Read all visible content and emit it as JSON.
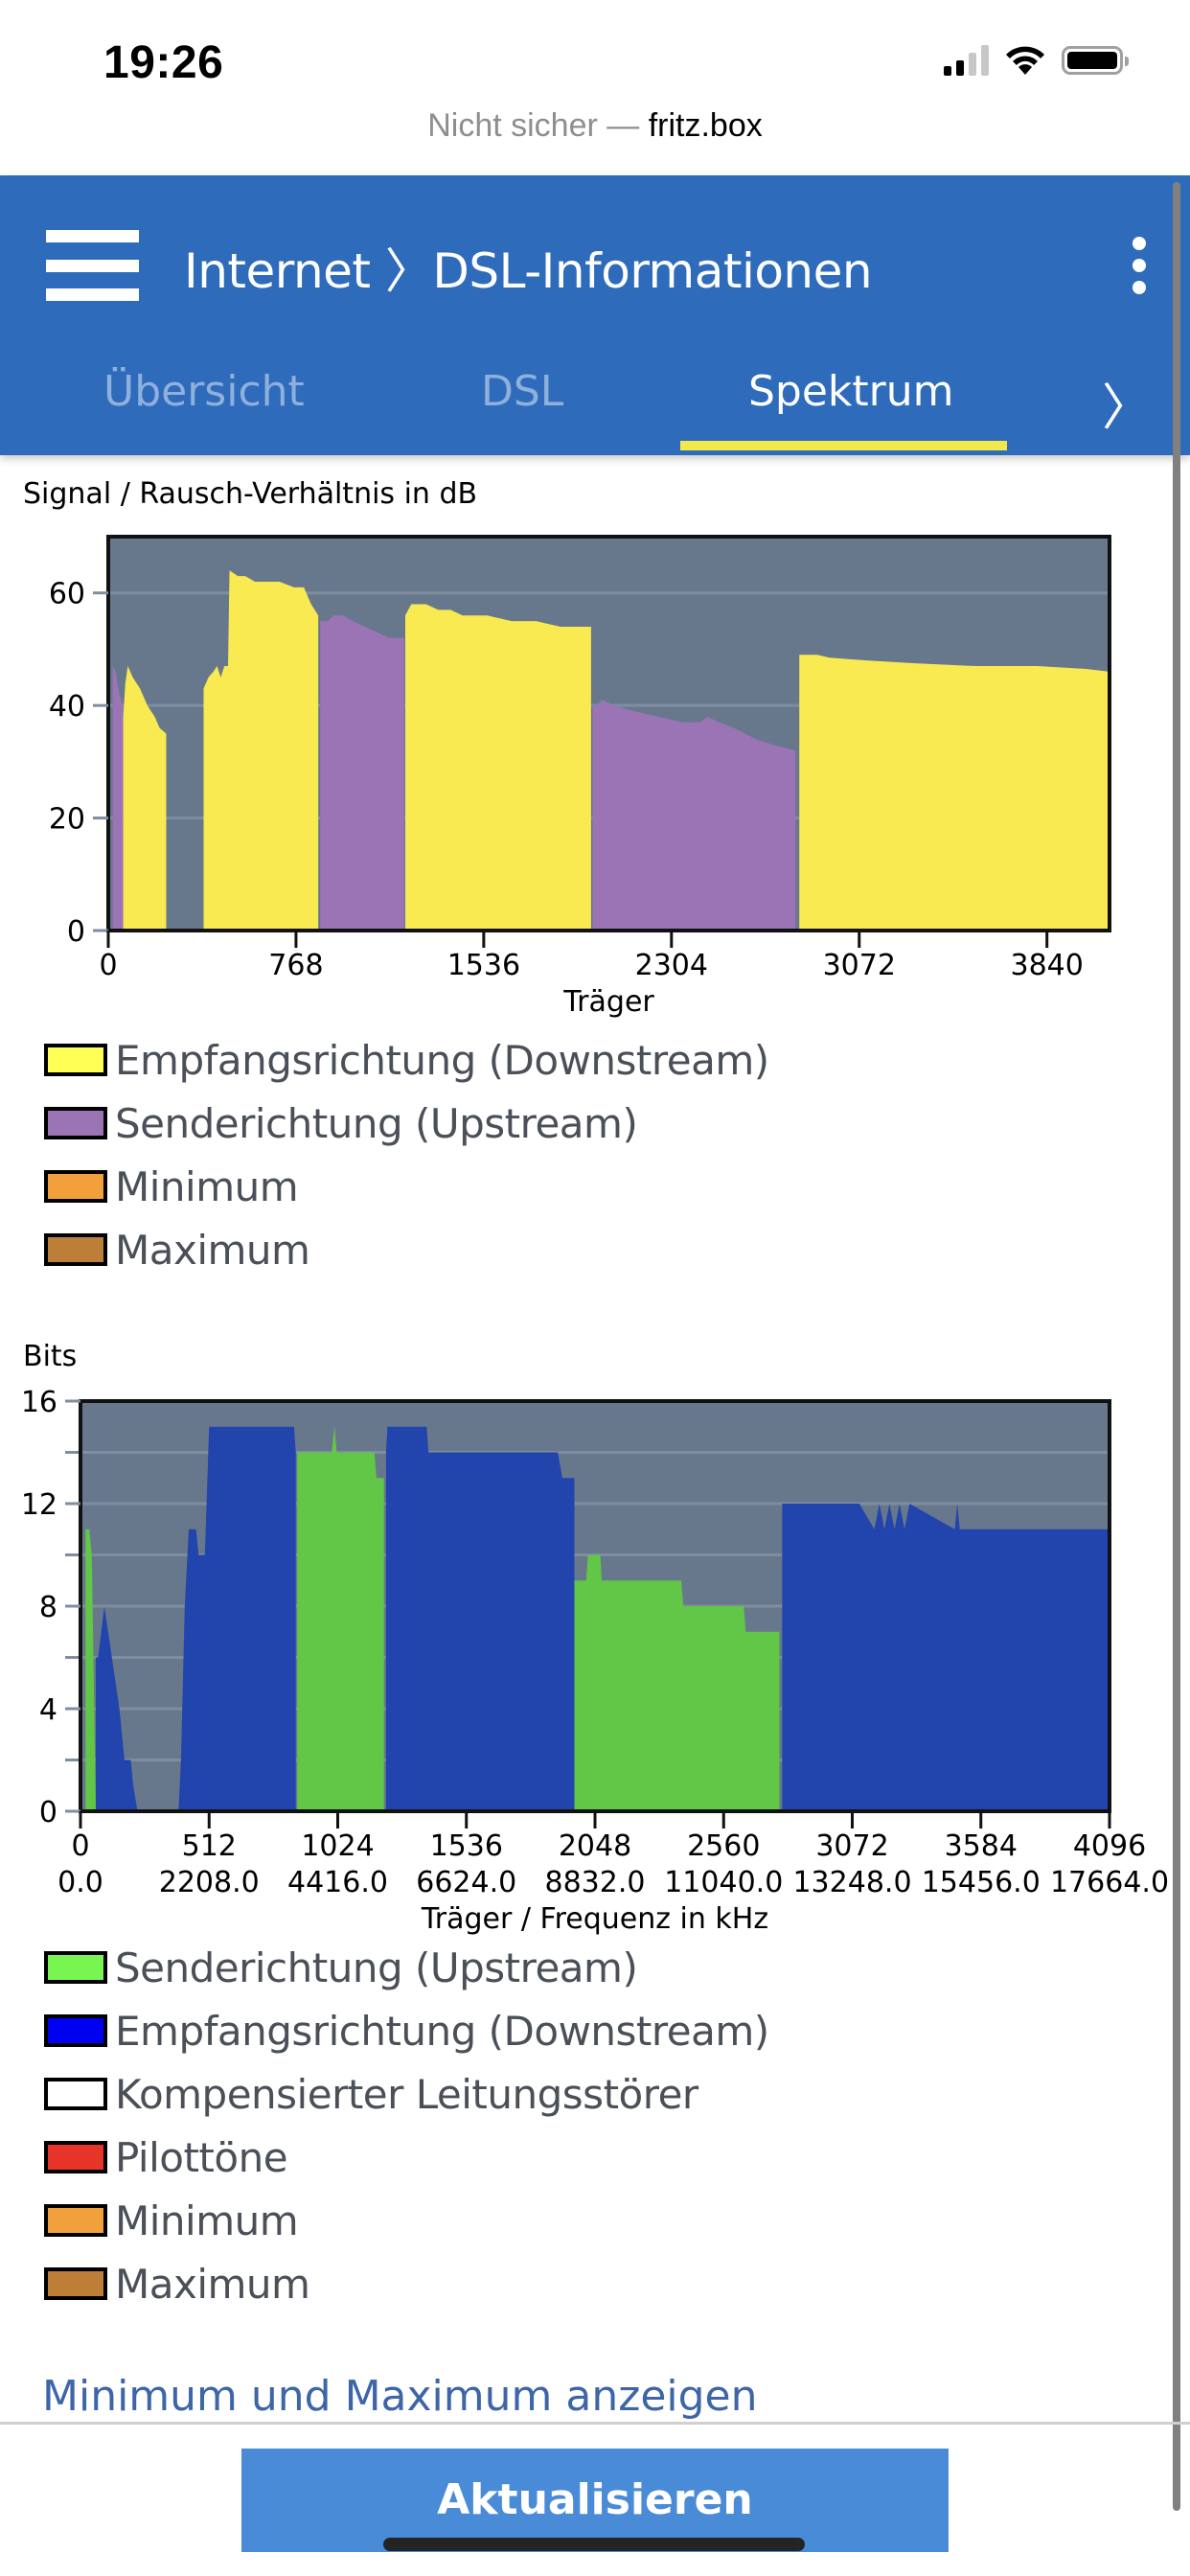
{
  "status_bar": {
    "time": "19:26"
  },
  "url_bar": {
    "prefix": "Nicht sicher — ",
    "host": "fritz.box"
  },
  "header": {
    "title": "Internet 〉DSL-Informationen"
  },
  "tabs": [
    {
      "label": "Übersicht",
      "active": false
    },
    {
      "label": "DSL",
      "active": false
    },
    {
      "label": "Spektrum",
      "active": true
    }
  ],
  "snr_section": {
    "label": "Signal / Rausch-Verhältnis in dB",
    "legend": [
      {
        "label": "Empfangsrichtung (Downstream)",
        "color": "#ffff55"
      },
      {
        "label": "Senderichtung (Upstream)",
        "color": "#9a74b5"
      },
      {
        "label": "Minimum",
        "color": "#f2a03c"
      },
      {
        "label": "Maximum",
        "color": "#bd7e38"
      }
    ]
  },
  "bits_section": {
    "label": "Bits",
    "legend": [
      {
        "label": "Senderichtung (Upstream)",
        "color": "#78f550"
      },
      {
        "label": "Empfangsrichtung (Downstream)",
        "color": "#0000f0"
      },
      {
        "label": "Kompensierter Leitungsstörer",
        "color": "#ffffff"
      },
      {
        "label": "Pilottöne",
        "color": "#e63428"
      },
      {
        "label": "Minimum",
        "color": "#f2a03c"
      },
      {
        "label": "Maximum",
        "color": "#bd7e38"
      }
    ]
  },
  "footer": {
    "minmax_link": "Minimum und Maximum anzeigen",
    "refresh_button": "Aktualisieren"
  },
  "chart_data": [
    {
      "type": "area",
      "title": "Signal / Rausch-Verhältnis in dB",
      "xlabel": "Träger",
      "ylabel": "dB",
      "xlim": [
        0,
        4096
      ],
      "ylim": [
        0,
        70
      ],
      "xticks": [
        0,
        768,
        1536,
        2304,
        3072,
        3840
      ],
      "yticks": [
        0,
        20,
        40,
        60
      ],
      "grid": true,
      "background": "#68788c",
      "series": [
        {
          "name": "Senderichtung (Upstream)",
          "color": "#9a74b5",
          "segments": [
            [
              [
                18,
                47
              ],
              [
                30,
                46
              ],
              [
                45,
                42
              ],
              [
                61,
                40
              ]
            ],
            [
              [
                867,
                55
              ],
              [
                900,
                55
              ],
              [
                920,
                56
              ],
              [
                960,
                56
              ],
              [
                1000,
                55
              ],
              [
                1050,
                54
              ],
              [
                1100,
                53
              ],
              [
                1150,
                52
              ],
              [
                1211,
                52
              ]
            ],
            [
              [
                1981,
                40
              ],
              [
                2000,
                40
              ],
              [
                2020,
                41
              ],
              [
                2070,
                40
              ],
              [
                2150,
                39
              ],
              [
                2250,
                38
              ],
              [
                2350,
                37
              ],
              [
                2420,
                37
              ],
              [
                2450,
                38
              ],
              [
                2500,
                37
              ],
              [
                2560,
                36
              ],
              [
                2650,
                34
              ],
              [
                2720,
                33
              ],
              [
                2811,
                32
              ]
            ]
          ]
        },
        {
          "name": "Empfangsrichtung (Downstream)",
          "color": "#f8ea50",
          "segments": [
            [
              [
                61,
                38
              ],
              [
                70,
                44
              ],
              [
                80,
                47
              ],
              [
                100,
                45
              ],
              [
                130,
                43
              ],
              [
                160,
                40
              ],
              [
                190,
                38
              ],
              [
                210,
                36
              ],
              [
                237,
                35
              ]
            ],
            [
              [
                390,
                43
              ],
              [
                410,
                45
              ],
              [
                430,
                46
              ],
              [
                445,
                47
              ],
              [
                460,
                45
              ],
              [
                475,
                47
              ],
              [
                490,
                47
              ],
              [
                496,
                64
              ],
              [
                530,
                63
              ],
              [
                560,
                63
              ],
              [
                600,
                62
              ],
              [
                700,
                62
              ],
              [
                760,
                61
              ],
              [
                800,
                61
              ],
              [
                830,
                58
              ],
              [
                859,
                56
              ]
            ],
            [
              [
                1215,
                56
              ],
              [
                1240,
                58
              ],
              [
                1300,
                58
              ],
              [
                1350,
                57
              ],
              [
                1400,
                57
              ],
              [
                1450,
                56
              ],
              [
                1550,
                56
              ],
              [
                1650,
                55
              ],
              [
                1750,
                55
              ],
              [
                1850,
                54
              ],
              [
                1975,
                54
              ]
            ],
            [
              [
                2827,
                49
              ],
              [
                2900,
                49
              ],
              [
                2950,
                48.5
              ],
              [
                3100,
                48
              ],
              [
                3300,
                47.5
              ],
              [
                3550,
                47
              ],
              [
                3800,
                47
              ],
              [
                4000,
                46.5
              ],
              [
                4096,
                46
              ]
            ]
          ]
        }
      ]
    },
    {
      "type": "area",
      "title": "Bits",
      "xlabel": "Träger / Frequenz in kHz",
      "ylabel": "Bits",
      "xlim": [
        0,
        4096
      ],
      "ylim": [
        0,
        16
      ],
      "xticks": [
        0,
        512,
        1024,
        1536,
        2048,
        2560,
        3072,
        3584,
        4096
      ],
      "xticks_freq": [
        "0.0",
        "2208.0",
        "4416.0",
        "6624.0",
        "8832.0",
        "11040.0",
        "13248.0",
        "15456.0",
        "17664.0"
      ],
      "yticks": [
        0,
        4,
        8,
        12,
        16
      ],
      "grid": true,
      "background": "#68788c",
      "series": [
        {
          "name": "Senderichtung (Upstream)",
          "color": "#62c646",
          "segments": [
            [
              [
                20,
                11
              ],
              [
                35,
                11
              ],
              [
                45,
                10
              ],
              [
                61,
                0
              ]
            ],
            [
              [
                863,
                14
              ],
              [
                1000,
                14
              ],
              [
                1011,
                15
              ],
              [
                1020,
                14
              ],
              [
                1170,
                14
              ],
              [
                1178,
                13
              ],
              [
                1208,
                13
              ]
            ],
            [
              [
                1964,
                9
              ],
              [
                2013,
                9
              ],
              [
                2020,
                10
              ],
              [
                2069,
                10
              ],
              [
                2075,
                9
              ],
              [
                2391,
                9
              ],
              [
                2400,
                8
              ],
              [
                2640,
                8
              ],
              [
                2648,
                7
              ],
              [
                2782,
                7
              ]
            ]
          ]
        },
        {
          "name": "Empfangsrichtung (Downstream)",
          "color": "#2244ad",
          "segments": [
            [
              [
                61,
                6
              ],
              [
                70,
                6
              ],
              [
                95,
                8
              ],
              [
                110,
                7
              ],
              [
                125,
                6
              ],
              [
                140,
                5
              ],
              [
                155,
                4
              ],
              [
                175,
                2
              ],
              [
                200,
                2
              ],
              [
                210,
                1
              ],
              [
                227,
                0
              ]
            ],
            [
              [
                390,
                0
              ],
              [
                400,
                2
              ],
              [
                415,
                8
              ],
              [
                431,
                11
              ],
              [
                460,
                11
              ],
              [
                470,
                10
              ],
              [
                495,
                10
              ],
              [
                512,
                15
              ],
              [
                850,
                15
              ],
              [
                857,
                14
              ]
            ],
            [
              [
                1216,
                14
              ],
              [
                1222,
                15
              ],
              [
                1378,
                15
              ],
              [
                1385,
                14
              ],
              [
                1900,
                14
              ],
              [
                1918,
                13
              ],
              [
                1966,
                13
              ]
            ],
            [
              [
                2793,
                12
              ],
              [
                3100,
                12
              ],
              [
                3160,
                11
              ],
              [
                3180,
                12
              ],
              [
                3200,
                11
              ],
              [
                3220,
                12
              ],
              [
                3240,
                11
              ],
              [
                3260,
                12
              ],
              [
                3280,
                11
              ],
              [
                3300,
                12
              ],
              [
                3480,
                11
              ],
              [
                3490,
                12
              ],
              [
                3500,
                11
              ],
              [
                4090,
                11
              ]
            ]
          ]
        }
      ]
    }
  ]
}
